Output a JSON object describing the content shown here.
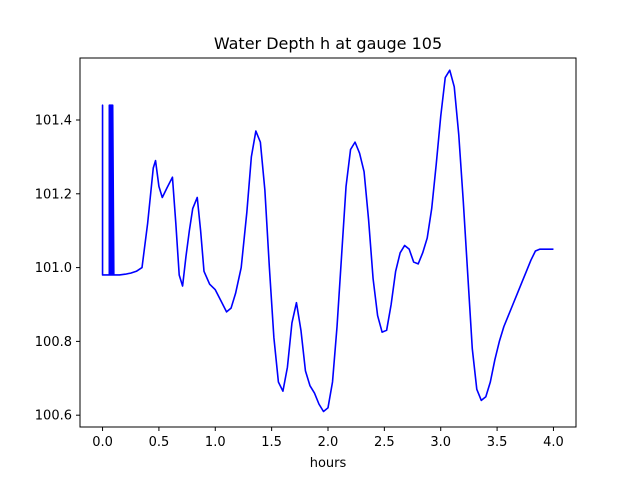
{
  "chart_data": {
    "type": "line",
    "title": "Water Depth h at gauge 105",
    "xlabel": "hours",
    "ylabel": "",
    "xlim": [
      -0.2,
      4.2
    ],
    "ylim": [
      100.568,
      101.568
    ],
    "xticks": [
      0.0,
      0.5,
      1.0,
      1.5,
      2.0,
      2.5,
      3.0,
      3.5,
      4.0
    ],
    "xtick_labels": [
      "0.0",
      "0.5",
      "1.0",
      "1.5",
      "2.0",
      "2.5",
      "3.0",
      "3.5",
      "4.0"
    ],
    "yticks": [
      100.6,
      100.8,
      101.0,
      101.2,
      101.4
    ],
    "ytick_labels": [
      "100.6",
      "100.8",
      "101.0",
      "101.2",
      "101.4"
    ],
    "grid": false,
    "legend": "none",
    "series": [
      {
        "color": "#0000ff",
        "x": [
          0.0,
          0.0,
          0.0,
          0.02,
          0.04,
          0.06,
          0.06,
          0.065,
          0.065,
          0.07,
          0.07,
          0.075,
          0.075,
          0.08,
          0.08,
          0.085,
          0.085,
          0.09,
          0.09,
          0.1,
          0.15,
          0.2,
          0.25,
          0.3,
          0.35,
          0.4,
          0.45,
          0.47,
          0.5,
          0.53,
          0.57,
          0.62,
          0.65,
          0.68,
          0.71,
          0.74,
          0.77,
          0.8,
          0.84,
          0.87,
          0.9,
          0.95,
          1.0,
          1.05,
          1.1,
          1.14,
          1.18,
          1.23,
          1.28,
          1.32,
          1.36,
          1.4,
          1.44,
          1.48,
          1.52,
          1.56,
          1.6,
          1.64,
          1.68,
          1.72,
          1.76,
          1.8,
          1.84,
          1.88,
          1.92,
          1.96,
          2.0,
          2.04,
          2.08,
          2.12,
          2.16,
          2.2,
          2.24,
          2.28,
          2.32,
          2.36,
          2.4,
          2.44,
          2.48,
          2.52,
          2.56,
          2.6,
          2.64,
          2.68,
          2.72,
          2.76,
          2.8,
          2.84,
          2.88,
          2.92,
          2.96,
          3.0,
          3.04,
          3.08,
          3.12,
          3.16,
          3.2,
          3.24,
          3.28,
          3.32,
          3.36,
          3.4,
          3.44,
          3.48,
          3.52,
          3.56,
          3.6,
          3.64,
          3.68,
          3.72,
          3.76,
          3.8,
          3.84,
          3.88,
          3.92,
          3.96,
          4.0
        ],
        "y": [
          100.98,
          101.44,
          100.98,
          100.98,
          100.98,
          100.98,
          101.44,
          101.44,
          100.98,
          100.98,
          101.44,
          101.44,
          100.98,
          100.98,
          101.44,
          101.44,
          100.98,
          100.98,
          101.44,
          100.98,
          100.98,
          100.982,
          100.985,
          100.99,
          101.0,
          101.12,
          101.27,
          101.29,
          101.22,
          101.19,
          101.215,
          101.245,
          101.12,
          100.98,
          100.95,
          101.03,
          101.1,
          101.16,
          101.19,
          101.1,
          100.99,
          100.955,
          100.94,
          100.91,
          100.88,
          100.89,
          100.93,
          101.0,
          101.15,
          101.3,
          101.37,
          101.34,
          101.21,
          101.0,
          100.81,
          100.69,
          100.665,
          100.73,
          100.85,
          100.905,
          100.83,
          100.72,
          100.68,
          100.66,
          100.63,
          100.61,
          100.62,
          100.69,
          100.84,
          101.03,
          101.22,
          101.32,
          101.34,
          101.31,
          101.26,
          101.13,
          100.97,
          100.87,
          100.825,
          100.83,
          100.9,
          100.99,
          101.04,
          101.06,
          101.05,
          101.015,
          101.01,
          101.04,
          101.08,
          101.16,
          101.28,
          101.41,
          101.515,
          101.535,
          101.49,
          101.36,
          101.18,
          100.98,
          100.78,
          100.67,
          100.64,
          100.65,
          100.69,
          100.75,
          100.8,
          100.84,
          100.87,
          100.9,
          100.93,
          100.96,
          100.99,
          101.02,
          101.045,
          101.05,
          101.05,
          101.05,
          101.05
        ]
      }
    ]
  }
}
